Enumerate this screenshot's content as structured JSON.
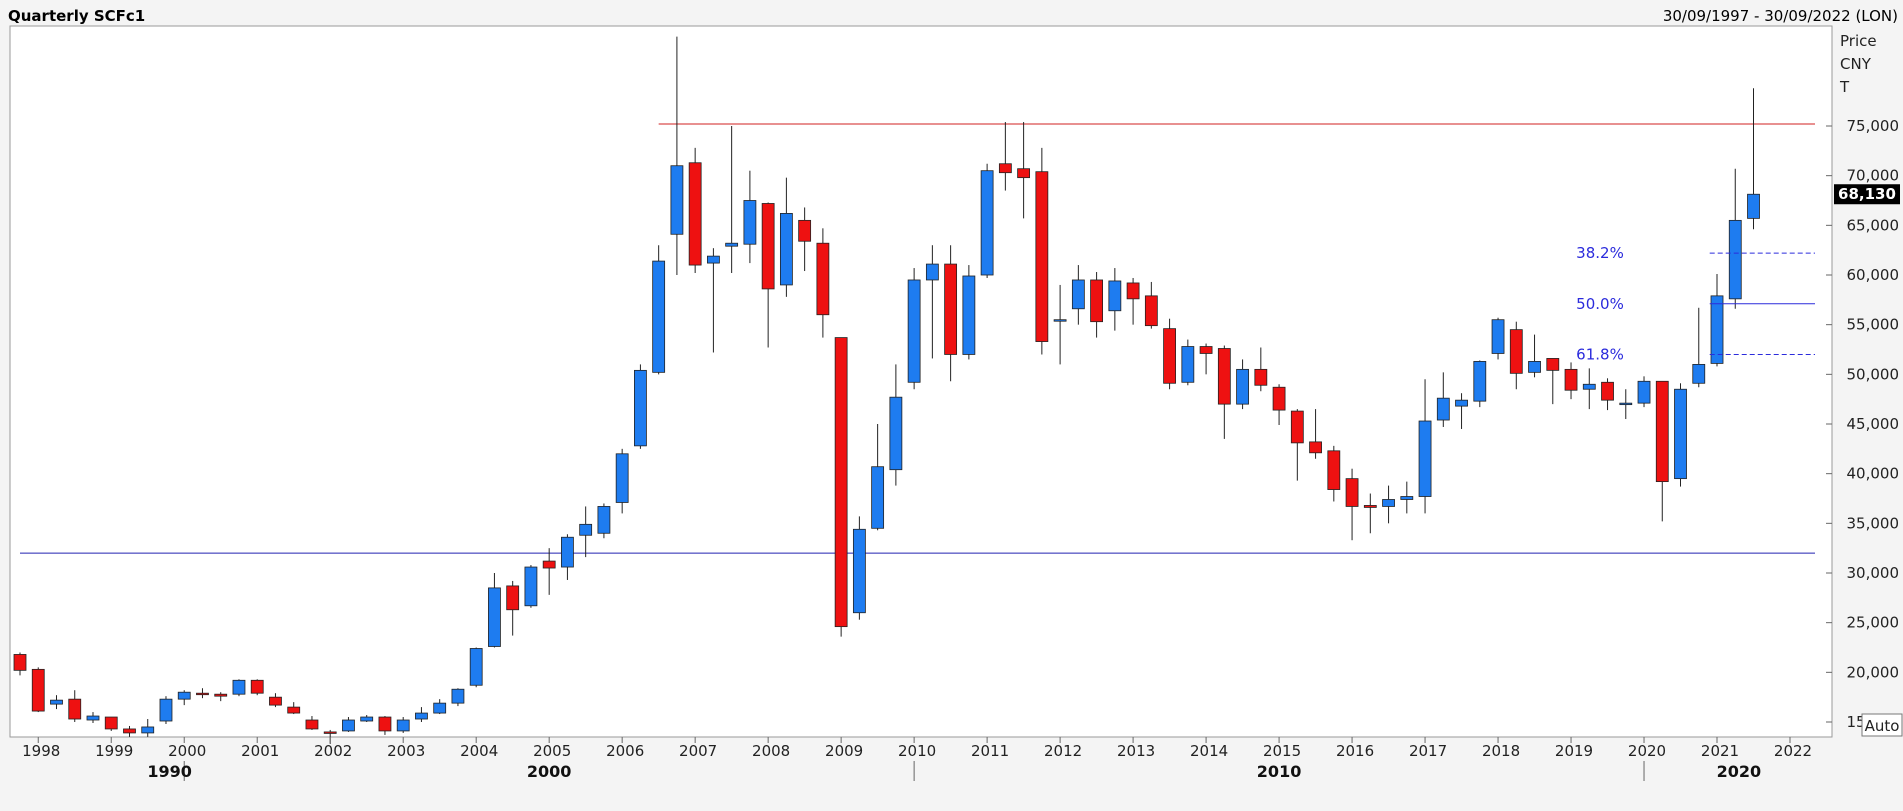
{
  "header": {
    "title": "Quarterly SCFc1",
    "range": "30/09/1997 - 30/09/2022 (LON)"
  },
  "yaxis_caption": [
    "Price",
    "CNY",
    "T"
  ],
  "auto_button": "Auto",
  "colors": {
    "up": "#1e7cf0",
    "down": "#ee1111",
    "resistance": "#d02020",
    "support": "#2020b0",
    "fib": "#2b2bdc",
    "last_price_bg": "#000000"
  },
  "chart_data": {
    "type": "candlestick",
    "title": "Quarterly SCFc1",
    "period": "30/09/1997 - 30/09/2022 (LON)",
    "currency": "CNY",
    "ylabel": "Price CNY T",
    "ylim": [
      12000,
      85000
    ],
    "xlim": [
      1997.75,
      2023.0
    ],
    "yticks": [
      15000,
      20000,
      25000,
      30000,
      35000,
      40000,
      45000,
      50000,
      55000,
      60000,
      65000,
      70000,
      75000
    ],
    "ytick_labels": [
      "15,000",
      "20,000",
      "25,000",
      "30,000",
      "35,000",
      "40,000",
      "45,000",
      "50,000",
      "55,000",
      "60,000",
      "65,000",
      "70,000",
      "75,000"
    ],
    "xticks": [
      1998,
      1999,
      2000,
      2001,
      2002,
      2003,
      2004,
      2005,
      2006,
      2007,
      2008,
      2009,
      2010,
      2011,
      2012,
      2013,
      2014,
      2015,
      2016,
      2017,
      2018,
      2019,
      2020,
      2021,
      2022
    ],
    "xtick_labels": [
      "1998",
      "1999",
      "2000",
      "2001",
      "2002",
      "2003",
      "2004",
      "2005",
      "2006",
      "2007",
      "2008",
      "2009",
      "2010",
      "2011",
      "2012",
      "2013",
      "2014",
      "2015",
      "2016",
      "2017",
      "2018",
      "2019",
      "2020",
      "2021",
      "2022"
    ],
    "decades": [
      {
        "label": "1990",
        "x": 1999.8
      },
      {
        "label": "2000",
        "x": 2005.0
      },
      {
        "label": "2010",
        "x": 2015.0
      },
      {
        "label": "2020",
        "x": 2021.3
      }
    ],
    "decade_separators": [
      2000,
      2010,
      2020
    ],
    "last_price": 68130,
    "last_price_label": "68,130",
    "grid": false,
    "hlines": [
      {
        "name": "resistance",
        "y": 75200,
        "x_start": 2006.5
      },
      {
        "name": "support",
        "y": 32000,
        "x_start": 1997.75
      }
    ],
    "fib_levels": [
      {
        "label": "38.2%",
        "y": 62200,
        "style": "dashed"
      },
      {
        "label": "50.0%",
        "y": 57100,
        "style": "solid"
      },
      {
        "label": "61.8%",
        "y": 52000,
        "style": "dashed"
      }
    ],
    "fib_x_start": 2020.9,
    "candles": [
      {
        "x": 1997.75,
        "o": 21800,
        "h": 22000,
        "l": 19700,
        "c": 20200
      },
      {
        "x": 1998.0,
        "o": 20300,
        "h": 20500,
        "l": 16000,
        "c": 16100
      },
      {
        "x": 1998.25,
        "o": 16800,
        "h": 17700,
        "l": 16300,
        "c": 17200
      },
      {
        "x": 1998.5,
        "o": 17300,
        "h": 18200,
        "l": 15000,
        "c": 15300
      },
      {
        "x": 1998.75,
        "o": 15200,
        "h": 16000,
        "l": 14900,
        "c": 15600
      },
      {
        "x": 1999.0,
        "o": 15500,
        "h": 15500,
        "l": 14100,
        "c": 14300
      },
      {
        "x": 1999.25,
        "o": 14300,
        "h": 14600,
        "l": 13500,
        "c": 13900
      },
      {
        "x": 1999.5,
        "o": 13900,
        "h": 15300,
        "l": 13500,
        "c": 14500
      },
      {
        "x": 1999.75,
        "o": 15100,
        "h": 17600,
        "l": 14800,
        "c": 17300
      },
      {
        "x": 2000.0,
        "o": 17300,
        "h": 18200,
        "l": 16700,
        "c": 18000
      },
      {
        "x": 2000.25,
        "o": 17900,
        "h": 18400,
        "l": 17400,
        "c": 17800
      },
      {
        "x": 2000.5,
        "o": 17800,
        "h": 18000,
        "l": 17100,
        "c": 17600
      },
      {
        "x": 2000.75,
        "o": 17800,
        "h": 19300,
        "l": 17600,
        "c": 19200
      },
      {
        "x": 2001.0,
        "o": 19200,
        "h": 19300,
        "l": 17700,
        "c": 17900
      },
      {
        "x": 2001.25,
        "o": 17500,
        "h": 17900,
        "l": 16500,
        "c": 16700
      },
      {
        "x": 2001.5,
        "o": 16500,
        "h": 17000,
        "l": 15800,
        "c": 15900
      },
      {
        "x": 2001.75,
        "o": 15200,
        "h": 15600,
        "l": 14200,
        "c": 14300
      },
      {
        "x": 2002.0,
        "o": 14000,
        "h": 14200,
        "l": 12800,
        "c": 13900
      },
      {
        "x": 2002.25,
        "o": 14100,
        "h": 15500,
        "l": 14000,
        "c": 15200
      },
      {
        "x": 2002.5,
        "o": 15100,
        "h": 15700,
        "l": 15000,
        "c": 15500
      },
      {
        "x": 2002.75,
        "o": 15500,
        "h": 15600,
        "l": 13700,
        "c": 14100
      },
      {
        "x": 2003.0,
        "o": 14100,
        "h": 15500,
        "l": 13900,
        "c": 15200
      },
      {
        "x": 2003.25,
        "o": 15300,
        "h": 16500,
        "l": 15000,
        "c": 15900
      },
      {
        "x": 2003.5,
        "o": 15900,
        "h": 17300,
        "l": 15800,
        "c": 16900
      },
      {
        "x": 2003.75,
        "o": 16900,
        "h": 18400,
        "l": 16600,
        "c": 18300
      },
      {
        "x": 2004.0,
        "o": 18700,
        "h": 22500,
        "l": 18500,
        "c": 22400
      },
      {
        "x": 2004.25,
        "o": 22600,
        "h": 30000,
        "l": 22500,
        "c": 28500
      },
      {
        "x": 2004.5,
        "o": 28700,
        "h": 29200,
        "l": 23700,
        "c": 26300
      },
      {
        "x": 2004.75,
        "o": 26700,
        "h": 30800,
        "l": 26500,
        "c": 30600
      },
      {
        "x": 2005.0,
        "o": 31200,
        "h": 32500,
        "l": 27800,
        "c": 30500
      },
      {
        "x": 2005.25,
        "o": 30600,
        "h": 33900,
        "l": 29300,
        "c": 33600
      },
      {
        "x": 2005.5,
        "o": 33800,
        "h": 36700,
        "l": 31600,
        "c": 34900
      },
      {
        "x": 2005.75,
        "o": 34000,
        "h": 37000,
        "l": 33500,
        "c": 36700
      },
      {
        "x": 2006.0,
        "o": 37100,
        "h": 42500,
        "l": 36000,
        "c": 42000
      },
      {
        "x": 2006.25,
        "o": 42800,
        "h": 51000,
        "l": 42500,
        "c": 50400
      },
      {
        "x": 2006.5,
        "o": 50200,
        "h": 63000,
        "l": 50000,
        "c": 61400
      },
      {
        "x": 2006.75,
        "o": 64100,
        "h": 84000,
        "l": 60000,
        "c": 71000
      },
      {
        "x": 2007.0,
        "o": 71300,
        "h": 72800,
        "l": 60200,
        "c": 61000
      },
      {
        "x": 2007.25,
        "o": 61200,
        "h": 62700,
        "l": 52200,
        "c": 61900
      },
      {
        "x": 2007.5,
        "o": 62900,
        "h": 75000,
        "l": 60200,
        "c": 63200
      },
      {
        "x": 2007.75,
        "o": 63100,
        "h": 70500,
        "l": 61200,
        "c": 67500
      },
      {
        "x": 2008.0,
        "o": 67200,
        "h": 67300,
        "l": 52700,
        "c": 58600
      },
      {
        "x": 2008.25,
        "o": 59000,
        "h": 69800,
        "l": 57800,
        "c": 66200
      },
      {
        "x": 2008.5,
        "o": 65500,
        "h": 66800,
        "l": 60400,
        "c": 63400
      },
      {
        "x": 2008.75,
        "o": 63200,
        "h": 64700,
        "l": 53700,
        "c": 56000
      },
      {
        "x": 2009.0,
        "o": 53700,
        "h": 53700,
        "l": 23600,
        "c": 24600
      },
      {
        "x": 2009.25,
        "o": 26000,
        "h": 35700,
        "l": 25300,
        "c": 34400
      },
      {
        "x": 2009.5,
        "o": 34500,
        "h": 45000,
        "l": 34300,
        "c": 40700
      },
      {
        "x": 2009.75,
        "o": 40400,
        "h": 51000,
        "l": 38800,
        "c": 47700
      },
      {
        "x": 2010.0,
        "o": 49200,
        "h": 60700,
        "l": 48500,
        "c": 59500
      },
      {
        "x": 2010.25,
        "o": 59500,
        "h": 63000,
        "l": 51600,
        "c": 61100
      },
      {
        "x": 2010.5,
        "o": 61100,
        "h": 63000,
        "l": 49300,
        "c": 52000
      },
      {
        "x": 2010.75,
        "o": 52000,
        "h": 61000,
        "l": 51500,
        "c": 59900
      },
      {
        "x": 2011.0,
        "o": 60000,
        "h": 71200,
        "l": 59700,
        "c": 70500
      },
      {
        "x": 2011.25,
        "o": 71200,
        "h": 75400,
        "l": 68500,
        "c": 70300
      },
      {
        "x": 2011.5,
        "o": 70700,
        "h": 75400,
        "l": 65700,
        "c": 69800
      },
      {
        "x": 2011.75,
        "o": 70400,
        "h": 72800,
        "l": 52000,
        "c": 53300
      },
      {
        "x": 2012.0,
        "o": 55500,
        "h": 59000,
        "l": 51000,
        "c": 55500
      },
      {
        "x": 2012.25,
        "o": 56600,
        "h": 61000,
        "l": 55000,
        "c": 59500
      },
      {
        "x": 2012.5,
        "o": 59500,
        "h": 60300,
        "l": 53700,
        "c": 55300
      },
      {
        "x": 2012.75,
        "o": 56400,
        "h": 60700,
        "l": 54400,
        "c": 59400
      },
      {
        "x": 2013.0,
        "o": 59200,
        "h": 59700,
        "l": 55000,
        "c": 57600
      },
      {
        "x": 2013.25,
        "o": 57900,
        "h": 59300,
        "l": 54600,
        "c": 54900
      },
      {
        "x": 2013.5,
        "o": 54600,
        "h": 55600,
        "l": 48500,
        "c": 49100
      },
      {
        "x": 2013.75,
        "o": 49200,
        "h": 53500,
        "l": 48900,
        "c": 52800
      },
      {
        "x": 2014.0,
        "o": 52800,
        "h": 53100,
        "l": 50000,
        "c": 52100
      },
      {
        "x": 2014.25,
        "o": 52600,
        "h": 52900,
        "l": 43500,
        "c": 47000
      },
      {
        "x": 2014.5,
        "o": 47000,
        "h": 51500,
        "l": 46500,
        "c": 50500
      },
      {
        "x": 2014.75,
        "o": 50500,
        "h": 52700,
        "l": 48300,
        "c": 48900
      },
      {
        "x": 2015.0,
        "o": 48700,
        "h": 49000,
        "l": 44900,
        "c": 46400
      },
      {
        "x": 2015.25,
        "o": 46300,
        "h": 46500,
        "l": 39300,
        "c": 43100
      },
      {
        "x": 2015.5,
        "o": 43200,
        "h": 46500,
        "l": 41500,
        "c": 42100
      },
      {
        "x": 2015.75,
        "o": 42300,
        "h": 42800,
        "l": 37200,
        "c": 38400
      },
      {
        "x": 2016.0,
        "o": 39500,
        "h": 40500,
        "l": 33300,
        "c": 36700
      },
      {
        "x": 2016.25,
        "o": 36800,
        "h": 38000,
        "l": 34000,
        "c": 36600
      },
      {
        "x": 2016.5,
        "o": 36700,
        "h": 38800,
        "l": 35000,
        "c": 37400
      },
      {
        "x": 2016.75,
        "o": 37400,
        "h": 39200,
        "l": 36000,
        "c": 37700
      },
      {
        "x": 2017.0,
        "o": 37700,
        "h": 49500,
        "l": 36000,
        "c": 45300
      },
      {
        "x": 2017.25,
        "o": 45400,
        "h": 50200,
        "l": 44700,
        "c": 47600
      },
      {
        "x": 2017.5,
        "o": 46800,
        "h": 48100,
        "l": 44500,
        "c": 47400
      },
      {
        "x": 2017.75,
        "o": 47300,
        "h": 51400,
        "l": 46700,
        "c": 51300
      },
      {
        "x": 2018.0,
        "o": 52100,
        "h": 55700,
        "l": 51500,
        "c": 55500
      },
      {
        "x": 2018.25,
        "o": 54500,
        "h": 55300,
        "l": 48500,
        "c": 50100
      },
      {
        "x": 2018.5,
        "o": 50200,
        "h": 54000,
        "l": 49700,
        "c": 51300
      },
      {
        "x": 2018.75,
        "o": 51600,
        "h": 51600,
        "l": 47000,
        "c": 50400
      },
      {
        "x": 2019.0,
        "o": 50500,
        "h": 51200,
        "l": 47500,
        "c": 48400
      },
      {
        "x": 2019.25,
        "o": 48500,
        "h": 50600,
        "l": 46500,
        "c": 49000
      },
      {
        "x": 2019.5,
        "o": 49200,
        "h": 49600,
        "l": 46400,
        "c": 47400
      },
      {
        "x": 2019.75,
        "o": 47100,
        "h": 48500,
        "l": 45500,
        "c": 47100
      },
      {
        "x": 2020.0,
        "o": 47100,
        "h": 49800,
        "l": 46700,
        "c": 49300
      },
      {
        "x": 2020.25,
        "o": 49300,
        "h": 49300,
        "l": 35200,
        "c": 39200
      },
      {
        "x": 2020.5,
        "o": 39500,
        "h": 49100,
        "l": 38700,
        "c": 48500
      },
      {
        "x": 2020.75,
        "o": 49100,
        "h": 56700,
        "l": 48700,
        "c": 51000
      },
      {
        "x": 2021.0,
        "o": 51100,
        "h": 60100,
        "l": 50800,
        "c": 57900
      },
      {
        "x": 2021.25,
        "o": 57600,
        "h": 70700,
        "l": 56600,
        "c": 65500
      },
      {
        "x": 2021.5,
        "o": 65700,
        "h": 78800,
        "l": 64600,
        "c": 68130
      }
    ]
  }
}
